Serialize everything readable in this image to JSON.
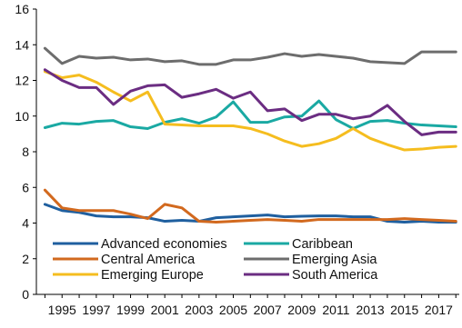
{
  "chart_data": {
    "type": "line",
    "title": "",
    "xlabel": "",
    "ylabel": "",
    "ylim": [
      0,
      16
    ],
    "yticks": [
      0,
      2,
      4,
      6,
      8,
      10,
      12,
      14,
      16
    ],
    "xticks": [
      "1995",
      "1997",
      "1999",
      "2001",
      "2003",
      "2005",
      "2007",
      "2009",
      "2011",
      "2013",
      "2015",
      "2017"
    ],
    "grid": false,
    "legend_position": "bottom-inside",
    "x": [
      1994,
      1995,
      1996,
      1997,
      1998,
      1999,
      2000,
      2001,
      2002,
      2003,
      2004,
      2005,
      2006,
      2007,
      2008,
      2009,
      2010,
      2011,
      2012,
      2013,
      2014,
      2015,
      2016,
      2017,
      2018
    ],
    "series": [
      {
        "name": "Advanced economies",
        "color": "#1f5f9f",
        "values": [
          5.05,
          4.7,
          4.6,
          4.4,
          4.35,
          4.35,
          4.3,
          4.1,
          4.15,
          4.1,
          4.3,
          4.35,
          4.4,
          4.45,
          4.35,
          4.38,
          4.4,
          4.4,
          4.35,
          4.35,
          4.1,
          4.05,
          4.1,
          4.05,
          4.05
        ]
      },
      {
        "name": "Caribbean",
        "color": "#1aa9a3",
        "values": [
          9.35,
          9.6,
          9.55,
          9.7,
          9.75,
          9.4,
          9.3,
          9.65,
          9.85,
          9.6,
          9.95,
          10.8,
          9.65,
          9.65,
          9.95,
          10.0,
          10.85,
          9.8,
          9.3,
          9.7,
          9.75,
          9.6,
          9.5,
          9.45,
          9.4
        ]
      },
      {
        "name": "Central America",
        "color": "#d2691e",
        "values": [
          5.85,
          4.85,
          4.7,
          4.7,
          4.7,
          4.5,
          4.25,
          5.05,
          4.85,
          4.1,
          4.05,
          4.1,
          4.15,
          4.2,
          4.15,
          4.1,
          4.2,
          4.2,
          4.2,
          4.2,
          4.2,
          4.25,
          4.2,
          4.15,
          4.1
        ]
      },
      {
        "name": "Emerging Asia",
        "color": "#6d6d6d",
        "values": [
          13.8,
          12.95,
          13.35,
          13.25,
          13.3,
          13.15,
          13.2,
          13.05,
          13.1,
          12.9,
          12.9,
          13.15,
          13.15,
          13.3,
          13.5,
          13.35,
          13.45,
          13.35,
          13.25,
          13.05,
          13.0,
          12.95,
          13.6,
          13.6,
          13.6
        ]
      },
      {
        "name": "Emerging Europe",
        "color": "#f5bd1f",
        "values": [
          12.5,
          12.15,
          12.3,
          11.9,
          11.35,
          10.85,
          11.35,
          9.55,
          9.5,
          9.45,
          9.45,
          9.45,
          9.3,
          9.0,
          8.6,
          8.3,
          8.45,
          8.75,
          9.3,
          8.75,
          8.4,
          8.1,
          8.15,
          8.25,
          8.3
        ]
      },
      {
        "name": "South America",
        "color": "#6b2d82",
        "values": [
          12.6,
          12.0,
          11.6,
          11.6,
          10.65,
          11.4,
          11.7,
          11.75,
          11.05,
          11.25,
          11.5,
          11.0,
          11.35,
          10.3,
          10.4,
          9.75,
          10.1,
          10.1,
          9.85,
          10.0,
          10.6,
          9.7,
          8.95,
          9.1,
          9.1
        ]
      }
    ]
  }
}
